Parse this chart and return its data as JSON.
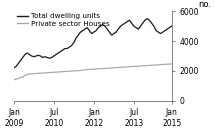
{
  "title": "",
  "ylabel": "no.",
  "ylim": [
    0,
    6000
  ],
  "yticks": [
    0,
    2000,
    4000,
    6000
  ],
  "xtick_labels": [
    "Jan\n2009",
    "Jul\n2010",
    "Jan\n2012",
    "Jul\n2013",
    "Jan\n2015"
  ],
  "legend": [
    "Total dwelling units",
    "Private sector Houses"
  ],
  "line_colors": [
    "#1a1a1a",
    "#aaaaaa"
  ],
  "background_color": "#ffffff",
  "total_dwelling": [
    2200,
    2300,
    2500,
    2700,
    2900,
    3100,
    3200,
    3100,
    3000,
    2950,
    3000,
    3050,
    3000,
    2900,
    2950,
    2900,
    2850,
    2900,
    3000,
    3100,
    3200,
    3300,
    3400,
    3500,
    3500,
    3600,
    3700,
    3900,
    4200,
    4400,
    4600,
    4700,
    4800,
    4900,
    4700,
    4500,
    4600,
    4700,
    4900,
    5000,
    5100,
    5000,
    4800,
    4600,
    4400,
    4500,
    4600,
    4800,
    5000,
    5100,
    5200,
    5300,
    5400,
    5200,
    5000,
    4900,
    4800,
    5000,
    5200,
    5400,
    5500,
    5400,
    5200,
    5000,
    4700,
    4600,
    4500,
    4600,
    4700,
    4800,
    4900,
    5000
  ],
  "private_houses": [
    1400,
    1450,
    1500,
    1550,
    1600,
    1700,
    1750,
    1800,
    1800,
    1820,
    1830,
    1840,
    1850,
    1860,
    1870,
    1880,
    1890,
    1900,
    1910,
    1920,
    1930,
    1940,
    1950,
    1960,
    1970,
    1980,
    1990,
    2000,
    2010,
    2020,
    2030,
    2050,
    2070,
    2090,
    2100,
    2110,
    2120,
    2130,
    2140,
    2150,
    2160,
    2170,
    2180,
    2190,
    2200,
    2210,
    2220,
    2230,
    2240,
    2250,
    2260,
    2270,
    2280,
    2290,
    2300,
    2310,
    2320,
    2330,
    2340,
    2350,
    2360,
    2370,
    2380,
    2390,
    2400,
    2410,
    2420,
    2430,
    2440,
    2450,
    2460,
    2470
  ],
  "n_points": 72
}
